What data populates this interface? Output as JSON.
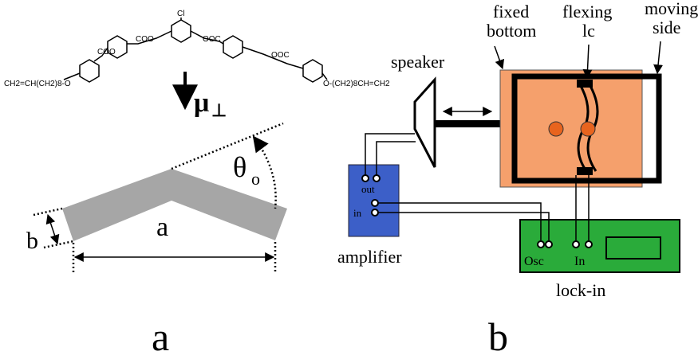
{
  "panel_a": {
    "molecule": {
      "substituent": "Cl",
      "linkers": [
        "COO",
        "COO",
        "OOC",
        "OOC"
      ],
      "left_chain": "CH2=CH(CH2)8-O",
      "right_chain": "O-(CH2)8CH=CH2"
    },
    "dipole": {
      "symbol": "μ",
      "subscript": "⊥"
    },
    "angle": {
      "symbol": "θ",
      "subscript": "o"
    },
    "width_label": "b",
    "length_label": "a",
    "label": "a"
  },
  "panel_b": {
    "speaker": "speaker",
    "fixed_bottom": [
      "fixed",
      "bottom"
    ],
    "flexing_lc": [
      "flexing",
      "lc"
    ],
    "moving_side": [
      "moving",
      "side"
    ],
    "amplifier": {
      "label": "amplifier",
      "out": "out",
      "in": "in"
    },
    "lock_in": {
      "label": "lock-in",
      "osc": "Osc",
      "in": "In"
    },
    "label": "b"
  }
}
